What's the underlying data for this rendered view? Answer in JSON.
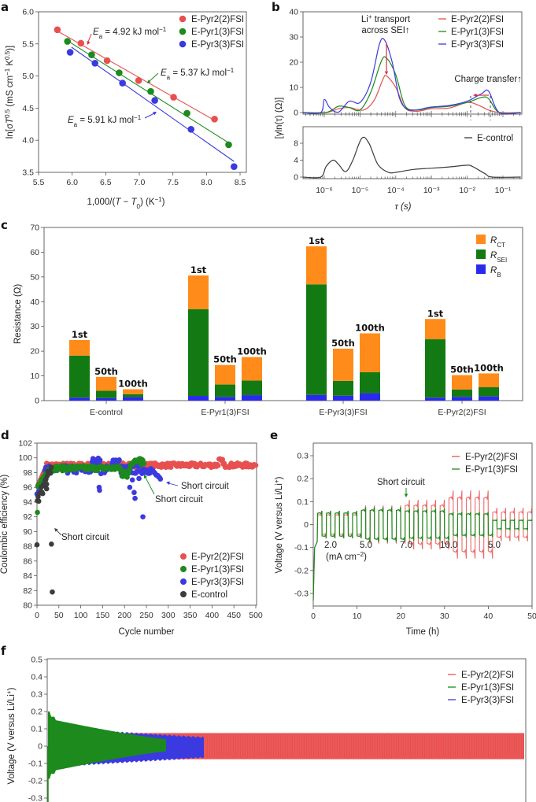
{
  "figure": {
    "panel_letters": [
      "a",
      "b",
      "c",
      "d",
      "e",
      "f"
    ]
  },
  "colors": {
    "pyr22": "#e85050",
    "pyr13": "#1c8a1c",
    "pyr33": "#3a3ae0",
    "control": "#3c3c3c",
    "rct": "#ff8c1a",
    "rsei": "#137a13",
    "rb": "#2a2aee",
    "annot_arrow": "#d03040"
  },
  "chart_data": [
    {
      "id": "a",
      "type": "scatter",
      "title": "",
      "xlabel": "1,000/(T − T0) (K⁻¹)",
      "ylabel": "ln[σT^0.5 (mS cm⁻¹ K^0.5)]",
      "xlim": [
        5.5,
        8.5
      ],
      "ylim": [
        3.5,
        6.0
      ],
      "xticks": [
        "5.5",
        "6.0",
        "6.5",
        "7.0",
        "7.5",
        "8.0",
        "8.5"
      ],
      "yticks": [
        "3.5",
        "4.0",
        "4.5",
        "5.0",
        "5.5",
        "6.0"
      ],
      "legend_position": "top-right",
      "series": [
        {
          "name": "E-Pyr2(2)FSI",
          "color_key": "pyr22",
          "x": [
            5.78,
            6.13,
            6.52,
            6.99,
            7.51,
            8.12
          ],
          "y": [
            5.72,
            5.51,
            5.24,
            4.93,
            4.67,
            4.33
          ],
          "fit": [
            [
              5.78,
              5.7
            ],
            [
              8.12,
              4.31
            ]
          ],
          "annotation": {
            "prefix": "E",
            "sub": "a",
            "text": " = 4.92 kJ mol",
            "sup": "−1"
          }
        },
        {
          "name": "E-Pyr1(3)FSI",
          "color_key": "pyr13",
          "x": [
            5.93,
            6.29,
            6.7,
            7.17,
            7.71,
            8.33
          ],
          "y": [
            5.54,
            5.33,
            5.05,
            4.76,
            4.42,
            3.93
          ],
          "fit": [
            [
              5.93,
              5.55
            ],
            [
              8.33,
              3.96
            ]
          ],
          "annotation": {
            "prefix": "E",
            "sub": "a",
            "text": " = 5.37 kJ mol",
            "sup": "−1"
          }
        },
        {
          "name": "E-Pyr3(3)FSI",
          "color_key": "pyr33",
          "x": [
            5.97,
            6.34,
            6.75,
            7.23,
            7.77,
            8.41
          ],
          "y": [
            5.37,
            5.2,
            4.89,
            4.62,
            4.17,
            3.59
          ],
          "fit": [
            [
              5.99,
              5.45
            ],
            [
              8.41,
              3.67
            ]
          ],
          "annotation": {
            "prefix": "E",
            "sub": "a",
            "text": " = 5.91 kJ mol",
            "sup": "−1"
          }
        }
      ]
    },
    {
      "id": "b",
      "type": "line",
      "xlabel": "τ (s)",
      "ylabel": "[γln(τ) (Ω)]",
      "xscale": "log",
      "xlim_log10": [
        -6.6,
        -0.5
      ],
      "xticks": [
        "10⁻⁶",
        "10⁻⁵",
        "10⁻⁴",
        "10⁻³",
        "10⁻²",
        "10⁻¹"
      ],
      "xtick_log10": [
        -6,
        -5,
        -4,
        -3,
        -2,
        -1
      ],
      "top": {
        "ylim": [
          0,
          40
        ],
        "yticks": [
          "0",
          "10",
          "20",
          "30",
          "40"
        ],
        "ytick_values": [
          0,
          10,
          20,
          30,
          40
        ],
        "annotations": [
          "Li⁺ transport",
          "across SEI↑",
          "Charge transfer↑"
        ],
        "legend_position": "top-right",
        "series": [
          {
            "name": "E-Pyr2(2)FSI",
            "color_key": "pyr22",
            "log10_tau": [
              -6.6,
              -5.95,
              -5.6,
              -5.3,
              -4.9,
              -4.6,
              -4.35,
              -4.25,
              -4.0,
              -3.75,
              -3.45,
              -3.0,
              -2.5,
              -2.0,
              -1.7,
              -1.4,
              -1.1,
              -0.5
            ],
            "y": [
              0,
              0,
              1.5,
              2.0,
              1.0,
              5.0,
              13.5,
              14.5,
              10.0,
              2.0,
              0.5,
              1.5,
              1.8,
              4.0,
              3.0,
              1.0,
              0,
              0
            ]
          },
          {
            "name": "E-Pyr1(3)FSI",
            "color_key": "pyr13",
            "log10_tau": [
              -6.6,
              -5.95,
              -5.6,
              -5.3,
              -5.0,
              -4.7,
              -4.4,
              -4.25,
              -4.0,
              -3.75,
              -3.45,
              -3.0,
              -2.5,
              -2.0,
              -1.6,
              -1.4,
              -1.1,
              -0.5
            ],
            "y": [
              0,
              0,
              2.5,
              2.0,
              1.0,
              8.0,
              20.5,
              21.5,
              15.0,
              3.0,
              1.0,
              2.0,
              2.5,
              4.0,
              6.0,
              5.5,
              0,
              0
            ]
          },
          {
            "name": "E-Pyr3(3)FSI",
            "color_key": "pyr33",
            "log10_tau": [
              -6.6,
              -6.1,
              -6.0,
              -5.85,
              -5.6,
              -5.3,
              -5.0,
              -4.7,
              -4.45,
              -4.3,
              -4.1,
              -3.9,
              -3.7,
              -3.45,
              -3.0,
              -2.5,
              -2.0,
              -1.6,
              -1.4,
              -1.1,
              -0.5
            ],
            "y": [
              0,
              0,
              5.2,
              2.0,
              0.2,
              4.5,
              4.0,
              12.0,
              27.5,
              28.5,
              20.0,
              6.0,
              1.5,
              1.0,
              2.2,
              2.8,
              4.5,
              7.5,
              8.5,
              0,
              0
            ]
          }
        ]
      },
      "bottom": {
        "ylim": [
          0,
          11
        ],
        "yticks": [
          "0",
          "4",
          "8"
        ],
        "ytick_values": [
          0,
          4,
          8
        ],
        "legend_position": "top-right",
        "series": [
          {
            "name": "E-control",
            "color_key": "control",
            "log10_tau": [
              -6.6,
              -6.1,
              -5.95,
              -5.75,
              -5.6,
              -5.4,
              -5.2,
              -4.95,
              -4.75,
              -4.5,
              -4.2,
              -3.95,
              -3.5,
              -3.0,
              -2.5,
              -2.0,
              -1.85,
              -1.5,
              -1.3,
              -0.5
            ],
            "y": [
              0,
              0,
              2.5,
              4.0,
              3.0,
              1.3,
              4.0,
              9.2,
              8.0,
              3.0,
              1.1,
              1.2,
              1.8,
              2.1,
              2.4,
              2.8,
              2.5,
              0.8,
              0,
              0
            ]
          }
        ]
      }
    },
    {
      "id": "c",
      "type": "bar",
      "stacked": true,
      "ylabel": "Resistance (Ω)",
      "ylim": [
        0,
        70
      ],
      "yticks": [
        "0",
        "10",
        "20",
        "30",
        "40",
        "50",
        "60",
        "70"
      ],
      "ytick_values": [
        0,
        10,
        20,
        30,
        40,
        50,
        60,
        70
      ],
      "legend_position": "top-right",
      "legend": [
        {
          "key": "rct",
          "label": "R",
          "sub": "CT"
        },
        {
          "key": "rsei",
          "label": "R",
          "sub": "SEI"
        },
        {
          "key": "rb",
          "label": "R",
          "sub": "B"
        }
      ],
      "categories": [
        "E-control",
        "E-Pyr1(3)FSI",
        "E-Pyr3(3)FSI",
        "E-Pyr2(2)FSI"
      ],
      "cycle_labels": [
        "1st",
        "50th",
        "100th"
      ],
      "groups": [
        {
          "category": "E-control",
          "bars": [
            {
              "cycle": "1st",
              "RB": 1.2,
              "RSEI": 17.0,
              "RCT": 6.3
            },
            {
              "cycle": "50th",
              "RB": 1.0,
              "RSEI": 3.0,
              "RCT": 5.6
            },
            {
              "cycle": "100th",
              "RB": 1.4,
              "RSEI": 1.2,
              "RCT": 2.0
            }
          ]
        },
        {
          "category": "E-Pyr1(3)FSI",
          "bars": [
            {
              "cycle": "1st",
              "RB": 1.9,
              "RSEI": 35.1,
              "RCT": 13.6
            },
            {
              "cycle": "50th",
              "RB": 1.5,
              "RSEI": 5.0,
              "RCT": 7.9
            },
            {
              "cycle": "100th",
              "RB": 2.2,
              "RSEI": 5.9,
              "RCT": 9.5
            }
          ]
        },
        {
          "category": "E-Pyr3(3)FSI",
          "bars": [
            {
              "cycle": "1st",
              "RB": 2.3,
              "RSEI": 44.7,
              "RCT": 15.4
            },
            {
              "cycle": "50th",
              "RB": 2.0,
              "RSEI": 6.0,
              "RCT": 13.0
            },
            {
              "cycle": "100th",
              "RB": 3.0,
              "RSEI": 8.5,
              "RCT": 15.7
            }
          ]
        },
        {
          "category": "E-Pyr2(2)FSI",
          "bars": [
            {
              "cycle": "1st",
              "RB": 1.2,
              "RSEI": 23.6,
              "RCT": 8.2
            },
            {
              "cycle": "50th",
              "RB": 1.5,
              "RSEI": 3.0,
              "RCT": 5.8
            },
            {
              "cycle": "100th",
              "RB": 1.7,
              "RSEI": 3.7,
              "RCT": 5.6
            }
          ]
        }
      ]
    },
    {
      "id": "d",
      "type": "scatter",
      "xlabel": "Cycle number",
      "ylabel": "Coulombic efficiency (%)",
      "xlim": [
        0,
        500
      ],
      "ylim": [
        80,
        102
      ],
      "xticks": [
        "0",
        "50",
        "100",
        "150",
        "200",
        "250",
        "300",
        "350",
        "400",
        "450",
        "500"
      ],
      "xtick_values": [
        0,
        50,
        100,
        150,
        200,
        250,
        300,
        350,
        400,
        450,
        500
      ],
      "yticks": [
        "80",
        "82",
        "84",
        "86",
        "88",
        "90",
        "92",
        "94",
        "96",
        "98",
        "100",
        "102"
      ],
      "ytick_values": [
        80,
        82,
        84,
        86,
        88,
        90,
        92,
        94,
        96,
        98,
        100,
        102
      ],
      "legend_position": "bottom-right",
      "annotations": [
        "Short circuit",
        "Short circuit",
        "Short circuit"
      ],
      "series": [
        {
          "name": "E-Pyr2(2)FSI",
          "color_key": "pyr22",
          "end_cycle": 500,
          "plateau": 99.0,
          "note": "stable ~98.8–99.3% to cycle 500, spike to 99.9 near cycle 420"
        },
        {
          "name": "E-Pyr1(3)FSI",
          "color_key": "pyr13",
          "end_cycle": 245,
          "plateau": 98.6,
          "first_point": 92.6,
          "note": "short circuit near cycle 245"
        },
        {
          "name": "E-Pyr3(3)FSI",
          "color_key": "pyr33",
          "end_cycle": 283,
          "plateau": 98.5,
          "outliers": [
            [
              142,
              96.0
            ],
            [
              143,
              95.6
            ],
            [
              212,
              96.0
            ],
            [
              218,
              97.0
            ],
            [
              222,
              95.3
            ],
            [
              224,
              94.5
            ],
            [
              233,
              97.2
            ],
            [
              242,
              92.0
            ]
          ],
          "note": "short circuit near cycle 283"
        },
        {
          "name": "E-control",
          "color_key": "control",
          "end_cycle": 35,
          "outliers": [
            [
              0,
              88.2
            ],
            [
              33,
              88.3
            ],
            [
              35,
              81.8
            ]
          ],
          "note": "short circuit near cycle 35"
        }
      ]
    },
    {
      "id": "e",
      "type": "line",
      "xlabel": "Time (h)",
      "ylabel": "Voltage (V versus Li/Li⁺)",
      "xlim": [
        0,
        50
      ],
      "ylim": [
        -0.35,
        0.35
      ],
      "xticks": [
        "0",
        "10",
        "20",
        "30",
        "40",
        "50"
      ],
      "xtick_values": [
        0,
        10,
        20,
        30,
        40,
        50
      ],
      "yticks": [
        "-0.3",
        "-0.2",
        "-0.1",
        "0",
        "0.1",
        "0.2",
        "0.3"
      ],
      "ytick_values": [
        -0.3,
        -0.2,
        -0.1,
        0,
        0.1,
        0.2,
        0.3
      ],
      "legend_position": "top-right",
      "current_density_labels": [
        "2.0",
        "5.0",
        "7.0",
        "10.0",
        "5.0"
      ],
      "current_density_unit": "(mA cm⁻²)",
      "segments_h": [
        [
          0,
          10
        ],
        [
          10,
          20
        ],
        [
          20,
          30
        ],
        [
          30,
          40
        ],
        [
          40,
          50
        ]
      ],
      "annotation": "Short circuit",
      "series": [
        {
          "name": "E-Pyr2(2)FSI",
          "color_key": "pyr22",
          "amplitudes_V": [
            0.05,
            0.075,
            0.1,
            0.14,
            0.065
          ]
        },
        {
          "name": "E-Pyr1(3)FSI",
          "color_key": "pyr13",
          "amplitudes_V": [
            0.06,
            0.075,
            0.07,
            0.055,
            0.022
          ]
        }
      ]
    },
    {
      "id": "f",
      "type": "line",
      "ylabel": "Voltage (V versus Li/Li⁺)",
      "ylim": [
        -0.3,
        0.5
      ],
      "yticks": [
        "-0.3",
        "-0.2",
        "-0.1",
        "0",
        "0.1",
        "0.2",
        "0.3",
        "0.4",
        "0.5"
      ],
      "ytick_values": [
        -0.3,
        -0.2,
        -0.1,
        0,
        0.1,
        0.2,
        0.3,
        0.4,
        0.5
      ],
      "legend_position": "top-right",
      "series": [
        {
          "name": "E-Pyr2(2)FSI",
          "color_key": "pyr22",
          "extent_fraction": 1.0,
          "envelope_V": 0.075
        },
        {
          "name": "E-Pyr1(3)FSI",
          "color_key": "pyr13",
          "extent_fraction": 0.25,
          "envelope_V": 0.2
        },
        {
          "name": "E-Pyr3(3)FSI",
          "color_key": "pyr33",
          "extent_fraction": 0.33,
          "envelope_V": 0.1
        }
      ]
    }
  ]
}
